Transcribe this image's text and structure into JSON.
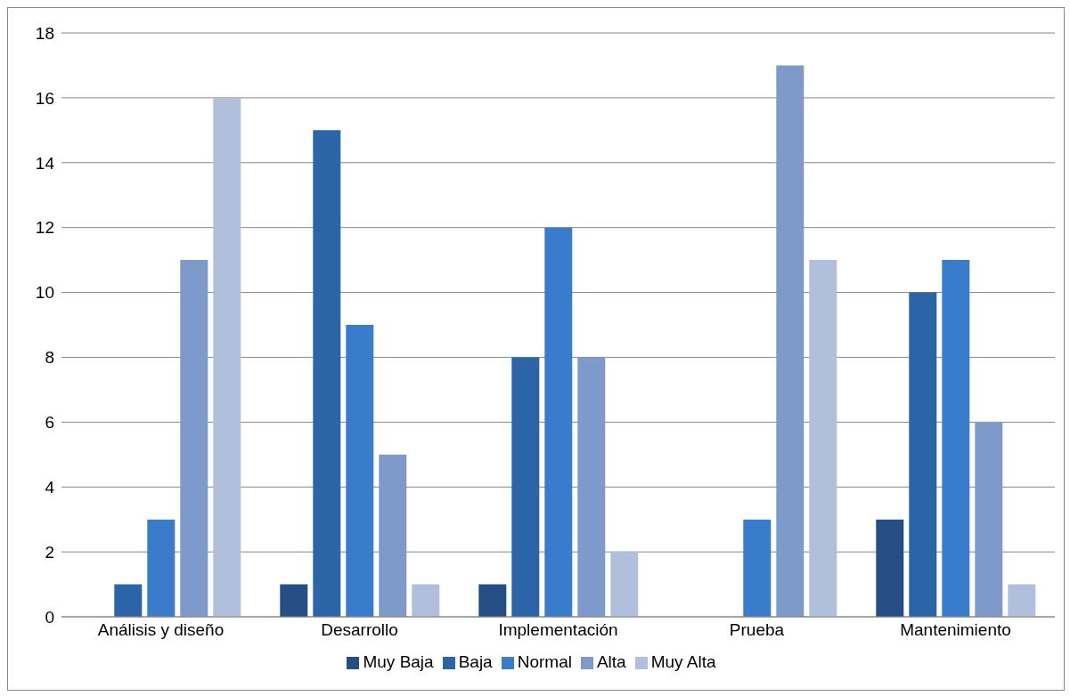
{
  "chart_data": {
    "type": "bar",
    "categories": [
      "Análisis y diseño",
      "Desarrollo",
      "Implementación",
      "Prueba",
      "Mantenimiento"
    ],
    "series": [
      {
        "name": "Muy Baja",
        "color": "#254e84",
        "values": [
          0,
          1,
          1,
          0,
          3
        ]
      },
      {
        "name": "Baja",
        "color": "#2c64a8",
        "values": [
          1,
          15,
          8,
          0,
          10
        ]
      },
      {
        "name": "Normal",
        "color": "#3a7ccc",
        "values": [
          3,
          9,
          12,
          3,
          11
        ]
      },
      {
        "name": "Alta",
        "color": "#7d9acb",
        "values": [
          11,
          5,
          8,
          17,
          6
        ]
      },
      {
        "name": "Muy Alta",
        "color": "#afbfdc",
        "values": [
          16,
          1,
          2,
          11,
          1
        ]
      }
    ],
    "ylim": [
      0,
      18
    ],
    "yticks": [
      0,
      2,
      4,
      6,
      8,
      10,
      12,
      14,
      16,
      18
    ],
    "grid": "y",
    "legend": "bottom"
  }
}
